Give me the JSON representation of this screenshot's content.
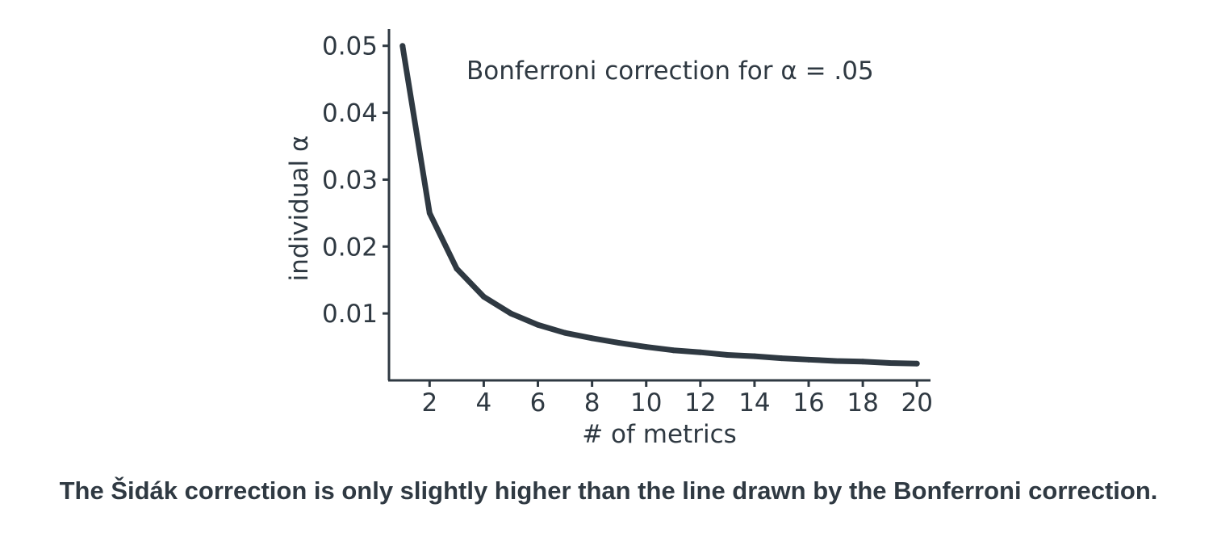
{
  "colors": {
    "line": "#2f3942",
    "text": "#2f3942",
    "background": "#ffffff"
  },
  "caption": "The Šidák correction is only slightly higher than the line drawn by the Bonferroni correction.",
  "chart_data": {
    "type": "line",
    "title": "",
    "annotation": "Bonferroni correction for α = .05",
    "xlabel": "# of metrics",
    "ylabel": "individual α",
    "xlim": [
      0.5,
      20.5
    ],
    "ylim": [
      0.0,
      0.0525
    ],
    "xticks": [
      2,
      4,
      6,
      8,
      10,
      12,
      14,
      16,
      18,
      20
    ],
    "xtick_labels": [
      "2",
      "4",
      "6",
      "8",
      "10",
      "12",
      "14",
      "16",
      "18",
      "20"
    ],
    "yticks": [
      0.01,
      0.02,
      0.03,
      0.04,
      0.05
    ],
    "ytick_labels": [
      "0.01",
      "0.02",
      "0.03",
      "0.04",
      "0.05"
    ],
    "grid": false,
    "x": [
      1,
      2,
      3,
      4,
      5,
      6,
      7,
      8,
      9,
      10,
      11,
      12,
      13,
      14,
      15,
      16,
      17,
      18,
      19,
      20
    ],
    "series": [
      {
        "values": [
          0.05,
          0.025,
          0.0167,
          0.0125,
          0.01,
          0.0083,
          0.0071,
          0.0063,
          0.0056,
          0.005,
          0.0045,
          0.0042,
          0.0038,
          0.0036,
          0.0033,
          0.0031,
          0.0029,
          0.0028,
          0.0026,
          0.0025
        ]
      }
    ]
  }
}
